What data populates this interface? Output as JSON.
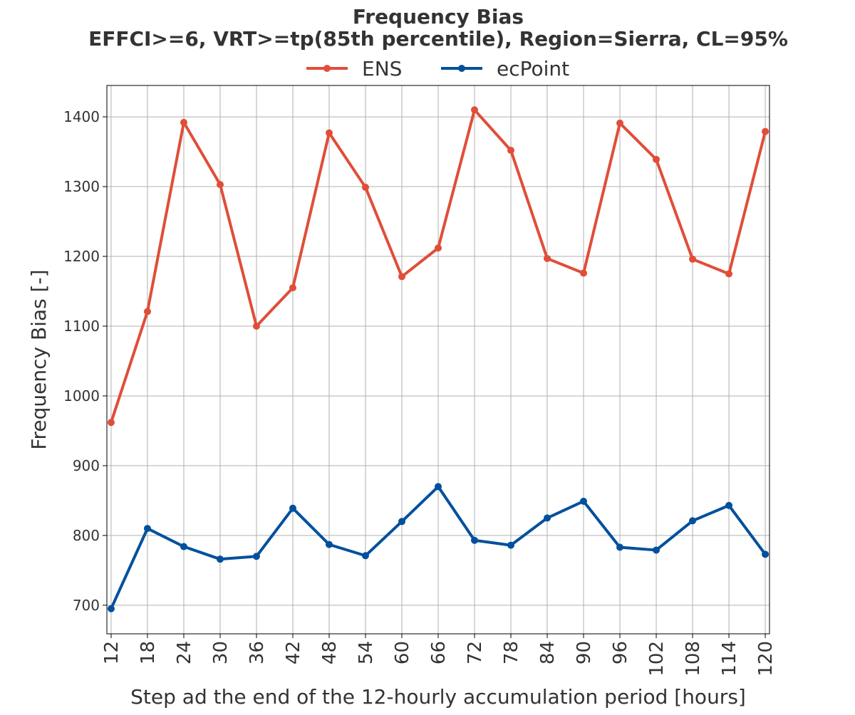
{
  "chart_data": {
    "type": "line",
    "title": "Frequency Bias",
    "subtitle": "EFFCI>=6, VRT>=tp(85th percentile), Region=Sierra, CL=95%",
    "xlabel": "Step ad the end of the 12-hourly accumulation period [hours]",
    "ylabel": "Frequency Bias [-]",
    "x": [
      12,
      18,
      24,
      30,
      36,
      42,
      48,
      54,
      60,
      66,
      72,
      78,
      84,
      90,
      96,
      102,
      108,
      114,
      120
    ],
    "x_tick_labels": [
      "12",
      "18",
      "24",
      "30",
      "36",
      "42",
      "48",
      "54",
      "60",
      "66",
      "72",
      "78",
      "84",
      "90",
      "96",
      "102",
      "108",
      "114",
      "120"
    ],
    "y_ticks": [
      700,
      800,
      900,
      1000,
      1100,
      1200,
      1300,
      1400
    ],
    "y_tick_labels": [
      "700",
      "800",
      "900",
      "1000",
      "1100",
      "1200",
      "1300",
      "1400"
    ],
    "xlim": [
      11.3,
      120.7
    ],
    "ylim": [
      659,
      1445
    ],
    "grid": true,
    "legend_position": "top-center",
    "series": [
      {
        "name": "ENS",
        "color": "#e04e39",
        "values": [
          962,
          1121,
          1392,
          1303,
          1100,
          1155,
          1377,
          1299,
          1171,
          1212,
          1410,
          1352,
          1197,
          1176,
          1391,
          1339,
          1196,
          1175,
          1379
        ]
      },
      {
        "name": "ecPoint",
        "color": "#00509d",
        "values": [
          695,
          810,
          784,
          766,
          770,
          839,
          787,
          771,
          820,
          870,
          793,
          786,
          825,
          849,
          783,
          779,
          821,
          843,
          773
        ]
      }
    ]
  }
}
